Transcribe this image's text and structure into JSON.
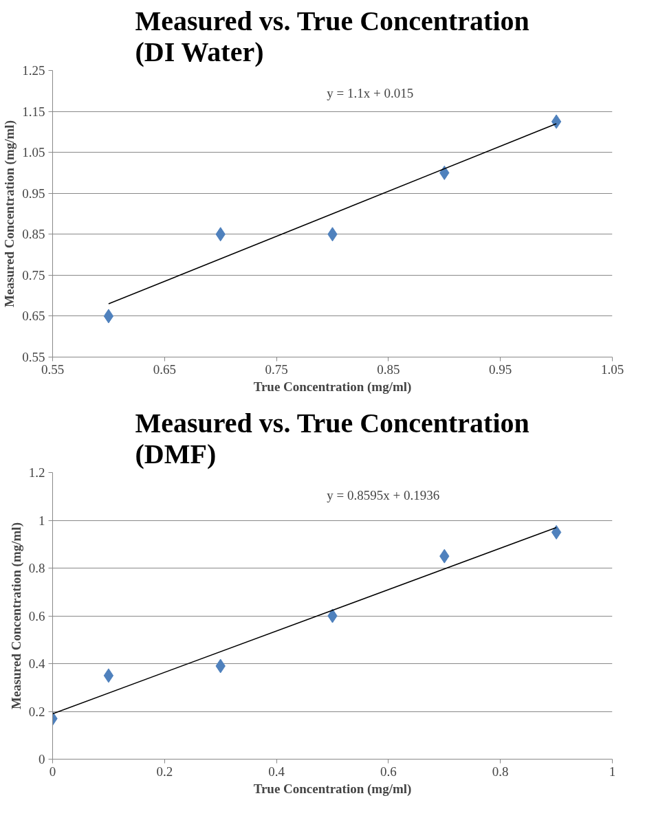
{
  "chart_data": [
    {
      "type": "scatter",
      "title": "Measured vs. True Concentration\n(DI Water)",
      "xlabel": "True Concentration (mg/ml)",
      "ylabel": "Measured Concentration (mg/ml)",
      "xlim": [
        0.55,
        1.05
      ],
      "xticks": [
        0.55,
        0.65,
        0.75,
        0.85,
        0.95,
        1.05
      ],
      "ylim": [
        0.55,
        1.25
      ],
      "yticks": [
        0.55,
        0.65,
        0.75,
        0.85,
        0.95,
        1.05,
        1.15,
        1.25
      ],
      "grid": "y",
      "marker": "diamond",
      "series": [
        {
          "color": "#4f81bd",
          "x": [
            0.6,
            0.7,
            0.8,
            0.9,
            1.0
          ],
          "values": [
            0.65,
            0.85,
            0.85,
            1.0,
            1.125
          ]
        },
        {
          "type": "line",
          "marker": "none",
          "color": "#000000",
          "x": [
            0.6,
            1.0
          ],
          "values": [
            0.68,
            1.12
          ]
        }
      ],
      "annotations": [
        "y = 1.1x + 0.015"
      ]
    },
    {
      "type": "scatter",
      "title": "Measured vs. True Concentration\n(DMF)",
      "xlabel": "True Concentration (mg/ml)",
      "ylabel": "Measured Concentration (mg/ml)",
      "xlim": [
        0,
        1
      ],
      "xticks": [
        0,
        0.2,
        0.4,
        0.6,
        0.8,
        1
      ],
      "ylim": [
        0,
        1.2
      ],
      "yticks": [
        0,
        0.2,
        0.4,
        0.6,
        0.8,
        1,
        1.2
      ],
      "grid": "y",
      "marker": "diamond",
      "series": [
        {
          "color": "#4f81bd",
          "x": [
            0,
            0.1,
            0.3,
            0.5,
            0.7,
            0.9
          ],
          "values": [
            0.17,
            0.35,
            0.39,
            0.6,
            0.85,
            0.95
          ]
        },
        {
          "type": "line",
          "marker": "none",
          "color": "#000000",
          "x": [
            0,
            0.9
          ],
          "values": [
            0.19,
            0.97
          ]
        }
      ],
      "annotations": [
        "y = 0.8595x + 0.1936"
      ]
    }
  ]
}
